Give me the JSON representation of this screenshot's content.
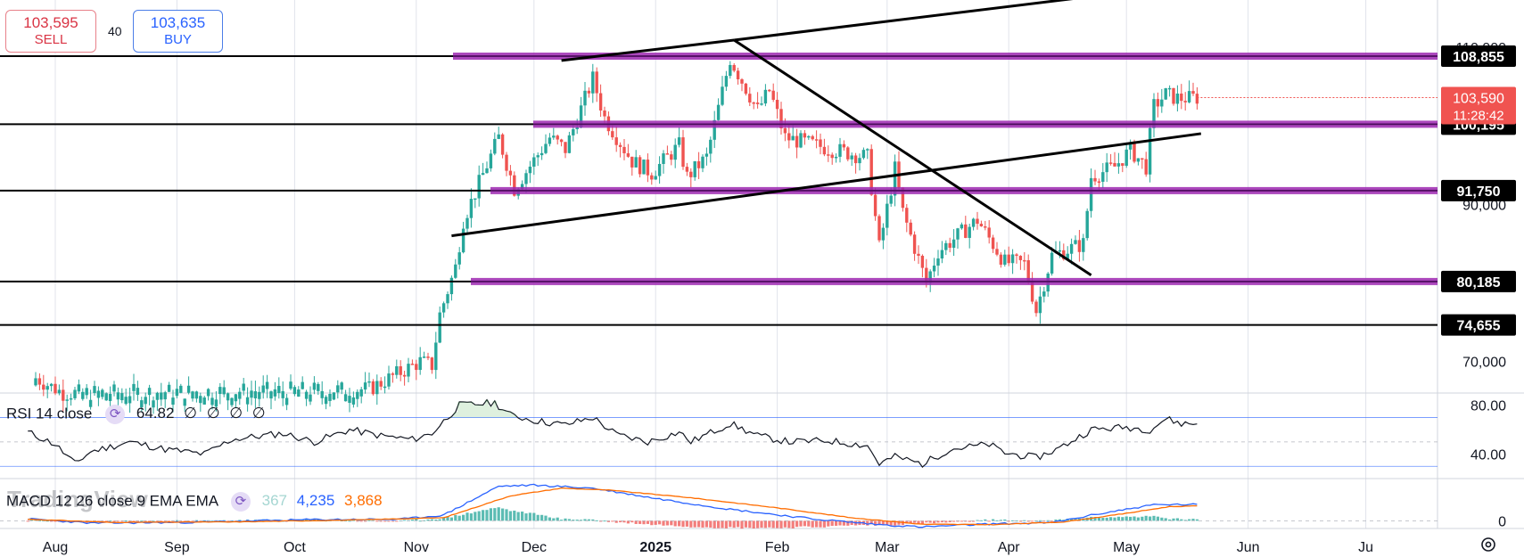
{
  "trade": {
    "sell_price": "103,595",
    "sell_label": "SELL",
    "buy_price": "103,635",
    "buy_label": "BUY",
    "spread": "40"
  },
  "colors": {
    "bull": "#26a69a",
    "bear": "#ef5350",
    "level_band": "#9c27b0",
    "trendline": "#000000",
    "rsi_line": "#131722",
    "macd_line": "#2962ff",
    "signal_line": "#ff6d00",
    "current_price_bg": "#f05350",
    "level_label_bg": "#000000"
  },
  "chart_data": {
    "type": "candlestick",
    "price_axis": {
      "ticks": [
        "110,000",
        "90,000",
        "70,000"
      ],
      "range": [
        66000,
        116000
      ]
    },
    "time_axis": {
      "ticks": [
        "Aug",
        "Sep",
        "Oct",
        "Nov",
        "Dec",
        "2025",
        "Feb",
        "Mar",
        "Apr",
        "May",
        "Jun",
        "Ju"
      ]
    },
    "levels": [
      {
        "label": "108,855",
        "value": 108855
      },
      {
        "label": "100,195",
        "value": 100195
      },
      {
        "label": "91,750",
        "value": 91750
      },
      {
        "label": "80,185",
        "value": 80185
      },
      {
        "label": "74,655",
        "value": 74655
      }
    ],
    "current_price": {
      "label": "103,590",
      "value": 103590,
      "countdown": "11:28:42"
    },
    "trendlines": [
      {
        "from": {
          "date": "2024-12-08",
          "price": 108300
        },
        "to": {
          "date": "2025-01-21",
          "price": 110900
        }
      },
      {
        "from": {
          "date": "2025-01-21",
          "price": 110900
        },
        "to": {
          "date": "2025-04-22",
          "price": 81000
        }
      },
      {
        "from": {
          "date": "2024-11-10",
          "price": 86000
        },
        "to": {
          "date": "2025-05-20",
          "price": 99000
        }
      },
      {
        "from": {
          "date": "2025-01-21",
          "price": 110900
        },
        "to": {
          "date": "2025-05-01",
          "price": 117000
        }
      }
    ],
    "candle_anchors": [
      [
        "2024-07-27",
        67900
      ],
      [
        "2024-08-03",
        66000
      ],
      [
        "2024-10-20",
        66500
      ],
      [
        "2024-11-02",
        70000
      ],
      [
        "2024-11-05",
        69500
      ],
      [
        "2024-11-07",
        76000
      ],
      [
        "2024-11-11",
        82000
      ],
      [
        "2024-11-13",
        88000
      ],
      [
        "2024-11-22",
        98500
      ],
      [
        "2024-11-26",
        92000
      ],
      [
        "2024-12-05",
        98500
      ],
      [
        "2024-12-09",
        97000
      ],
      [
        "2024-12-16",
        106000
      ],
      [
        "2024-12-19",
        101000
      ],
      [
        "2024-12-26",
        95500
      ],
      [
        "2024-12-31",
        94000
      ],
      [
        "2025-01-07",
        97500
      ],
      [
        "2025-01-09",
        93500
      ],
      [
        "2025-01-14",
        96000
      ],
      [
        "2025-01-20",
        108500
      ],
      [
        "2025-01-27",
        102000
      ],
      [
        "2025-01-30",
        104500
      ],
      [
        "2025-02-03",
        98500
      ],
      [
        "2025-02-15",
        97000
      ],
      [
        "2025-02-24",
        96000
      ],
      [
        "2025-02-27",
        84500
      ],
      [
        "2025-03-03",
        94500
      ],
      [
        "2025-03-05",
        89000
      ],
      [
        "2025-03-11",
        80000
      ],
      [
        "2025-03-14",
        84000
      ],
      [
        "2025-03-24",
        88000
      ],
      [
        "2025-03-31",
        82600
      ],
      [
        "2025-04-05",
        82500
      ],
      [
        "2025-04-08",
        76500
      ],
      [
        "2025-04-12",
        83500
      ],
      [
        "2025-04-20",
        85000
      ],
      [
        "2025-04-22",
        93500
      ],
      [
        "2025-04-28",
        94800
      ],
      [
        "2025-05-02",
        96900
      ],
      [
        "2025-05-06",
        94800
      ],
      [
        "2025-05-08",
        102500
      ],
      [
        "2025-05-11",
        104000
      ],
      [
        "2025-05-14",
        103500
      ],
      [
        "2025-05-17",
        103500
      ],
      [
        "2025-05-19",
        103590
      ]
    ],
    "rsi": {
      "title": "RSI 14 close",
      "value": "64.82",
      "extras": [
        "∅",
        "∅",
        "∅",
        "∅"
      ],
      "ticks": [
        "80.00",
        "40.00"
      ],
      "range": [
        20,
        90
      ],
      "bands": [
        70,
        30
      ],
      "anchors": [
        [
          "2024-07-25",
          58
        ],
        [
          "2024-08-01",
          48
        ],
        [
          "2024-08-06",
          32
        ],
        [
          "2024-08-10",
          42
        ],
        [
          "2024-08-20",
          50
        ],
        [
          "2024-08-29",
          44
        ],
        [
          "2024-09-08",
          40
        ],
        [
          "2024-09-15",
          52
        ],
        [
          "2024-09-28",
          57
        ],
        [
          "2024-10-06",
          50
        ],
        [
          "2024-10-15",
          60
        ],
        [
          "2024-10-23",
          55
        ],
        [
          "2024-10-31",
          52
        ],
        [
          "2024-11-05",
          57
        ],
        [
          "2024-11-12",
          80
        ],
        [
          "2024-11-21",
          82
        ],
        [
          "2024-11-25",
          72
        ],
        [
          "2024-12-02",
          67
        ],
        [
          "2024-12-09",
          64
        ],
        [
          "2024-12-16",
          70
        ],
        [
          "2024-12-22",
          56
        ],
        [
          "2024-12-30",
          50
        ],
        [
          "2025-01-07",
          58
        ],
        [
          "2025-01-10",
          50
        ],
        [
          "2025-01-20",
          65
        ],
        [
          "2025-01-27",
          55
        ],
        [
          "2025-02-04",
          50
        ],
        [
          "2025-02-14",
          51
        ],
        [
          "2025-02-24",
          47
        ],
        [
          "2025-02-27",
          32
        ],
        [
          "2025-03-03",
          38
        ],
        [
          "2025-03-10",
          32
        ],
        [
          "2025-03-17",
          44
        ],
        [
          "2025-03-27",
          48
        ],
        [
          "2025-03-31",
          41
        ],
        [
          "2025-04-08",
          37
        ],
        [
          "2025-04-14",
          45
        ],
        [
          "2025-04-22",
          60
        ],
        [
          "2025-05-01",
          62
        ],
        [
          "2025-05-07",
          60
        ],
        [
          "2025-05-11",
          69
        ],
        [
          "2025-05-15",
          65
        ],
        [
          "2025-05-19",
          64.82
        ]
      ]
    },
    "macd": {
      "title": "MACD 12 26 close 9 EMA EMA",
      "histogram_value": "367",
      "macd_value": "4,235",
      "signal_value": "3,868",
      "ticks": [
        "0"
      ],
      "range": [
        -2000,
        11000
      ],
      "macd_anchors": [
        [
          "2024-07-25",
          500
        ],
        [
          "2024-08-10",
          -600
        ],
        [
          "2024-09-05",
          -400
        ],
        [
          "2024-10-05",
          300
        ],
        [
          "2024-10-28",
          400
        ],
        [
          "2024-11-08",
          1500
        ],
        [
          "2024-11-22",
          9000
        ],
        [
          "2024-12-01",
          9300
        ],
        [
          "2024-12-16",
          8500
        ],
        [
          "2024-12-31",
          6000
        ],
        [
          "2025-01-20",
          3000
        ],
        [
          "2025-02-10",
          500
        ],
        [
          "2025-02-27",
          -1000
        ],
        [
          "2025-03-10",
          -1600
        ],
        [
          "2025-03-28",
          -800
        ],
        [
          "2025-04-12",
          -500
        ],
        [
          "2025-04-25",
          2000
        ],
        [
          "2025-05-08",
          4200
        ],
        [
          "2025-05-19",
          4235
        ]
      ],
      "signal_anchors": [
        [
          "2024-07-25",
          400
        ],
        [
          "2024-08-15",
          -400
        ],
        [
          "2024-09-15",
          -300
        ],
        [
          "2024-10-15",
          200
        ],
        [
          "2024-11-08",
          800
        ],
        [
          "2024-11-25",
          6500
        ],
        [
          "2024-12-08",
          8500
        ],
        [
          "2024-12-20",
          8000
        ],
        [
          "2025-01-10",
          6000
        ],
        [
          "2025-01-31",
          3500
        ],
        [
          "2025-02-20",
          800
        ],
        [
          "2025-03-10",
          -900
        ],
        [
          "2025-03-28",
          -1000
        ],
        [
          "2025-04-15",
          -300
        ],
        [
          "2025-04-30",
          1800
        ],
        [
          "2025-05-12",
          3700
        ],
        [
          "2025-05-19",
          3868
        ]
      ]
    }
  },
  "branding": {
    "watermark": "TradingView"
  }
}
